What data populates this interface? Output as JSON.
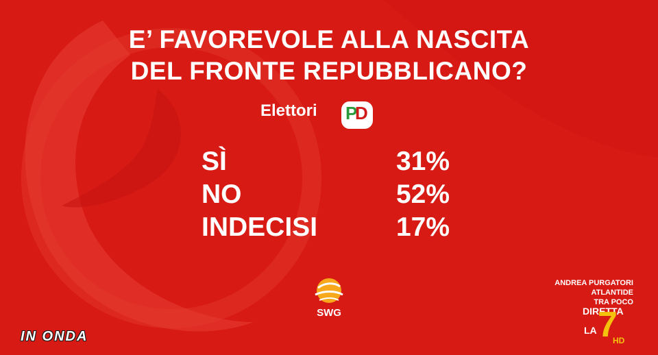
{
  "question": {
    "line1": "E’ FAVOREVOLE ALLA NASCITA",
    "line2": "DEL FRONTE REPUBBLICANO?"
  },
  "subtitle": "Elettori",
  "party_logo": {
    "icon": "pd-logo",
    "text": "PD"
  },
  "results": [
    {
      "label": "SÌ",
      "value": "31%"
    },
    {
      "label": "NO",
      "value": "52%"
    },
    {
      "label": "INDECISI",
      "value": "17%"
    }
  ],
  "source": {
    "icon": "swg-globe-icon",
    "label": "SWG"
  },
  "show_name": "IN ONDA",
  "promo": {
    "line1": "ANDREA PURGATORI",
    "line2": "ATLANTIDE",
    "line3": "TRA POCO"
  },
  "channel": {
    "diretta": "DIRETTA",
    "la": "LA",
    "seven": "7",
    "hd": "HD"
  },
  "colors": {
    "background": "#d81a14",
    "text": "#ffffff",
    "accent": "#f4c20d"
  }
}
